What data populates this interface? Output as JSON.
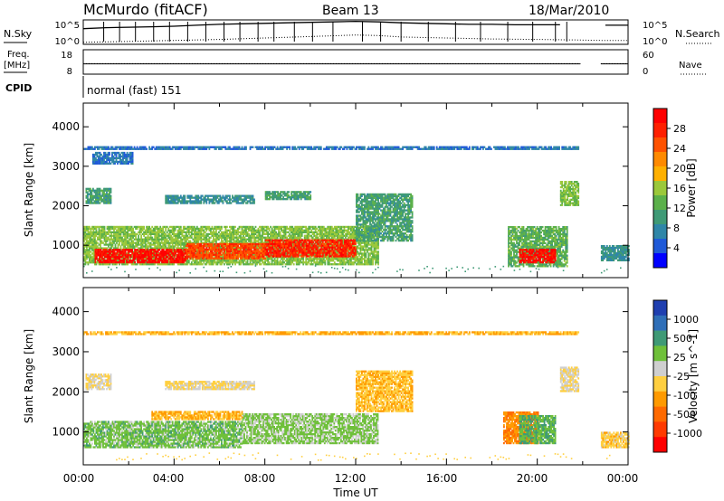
{
  "header": {
    "station": "McMurdo (fitACF)",
    "beam": "Beam 13",
    "date": "18/Mar/2010"
  },
  "noise_panel": {
    "left_label": "N.Sky",
    "left_ticks": [
      "10^5",
      "10^0"
    ],
    "right_ticks": [
      "10^5",
      "10^0"
    ],
    "right_label": "N.Search",
    "series": [
      {
        "style": "solid",
        "points": [
          [
            0,
            3.2
          ],
          [
            1,
            3.4
          ],
          [
            2,
            3.5
          ],
          [
            3,
            3.6
          ],
          [
            4,
            3.7
          ],
          [
            5,
            3.9
          ],
          [
            6,
            4.1
          ],
          [
            7,
            4.2
          ],
          [
            8,
            4.3
          ],
          [
            9,
            4.4
          ],
          [
            10,
            4.5
          ],
          [
            11,
            4.6
          ],
          [
            12,
            4.7
          ],
          [
            13,
            4.6
          ],
          [
            14,
            4.4
          ],
          [
            15,
            4.3
          ],
          [
            16,
            4.2
          ],
          [
            17,
            4.1
          ],
          [
            18,
            4.1
          ],
          [
            19,
            4.0
          ],
          [
            20,
            4.0
          ],
          [
            21,
            4.0
          ],
          [
            22,
            null
          ],
          [
            23,
            3.9
          ],
          [
            24,
            3.9
          ]
        ]
      },
      {
        "style": "dotted",
        "points": [
          [
            0,
            0.4
          ],
          [
            2,
            0.6
          ],
          [
            4,
            0.8
          ],
          [
            6,
            1.0
          ],
          [
            8,
            1.3
          ],
          [
            10,
            1.6
          ],
          [
            12,
            1.9
          ],
          [
            13,
            1.8
          ],
          [
            14,
            1.5
          ],
          [
            16,
            1.3
          ],
          [
            18,
            1.1
          ],
          [
            20,
            1.0
          ],
          [
            21.5,
            0.9
          ],
          [
            22.8,
            0.8
          ],
          [
            24,
            0.8
          ]
        ]
      }
    ],
    "spikes": [
      0.9,
      1.6,
      2.3,
      3.1,
      3.8,
      4.6,
      5.4,
      6.2,
      6.9,
      7.7,
      8.4,
      9.3,
      10.1,
      11.0,
      12.3,
      13.1,
      14.0,
      15.2,
      16.4,
      17.5,
      18.7,
      19.8,
      20.8,
      21.3
    ]
  },
  "freq_panel": {
    "left_label_1": "Freq.",
    "left_label_2": "[MHz]",
    "left_ticks": [
      "18",
      "8"
    ],
    "right_ticks": [
      "60",
      "0"
    ],
    "right_label": "Nave",
    "freq_mhz": 12.2,
    "nave": 8
  },
  "cpid": {
    "label": "CPID",
    "value": "normal (fast) 151"
  },
  "panels": {
    "ylabel": "Slant Range [km]",
    "yticks": [
      "1000",
      "2000",
      "3000",
      "4000"
    ]
  },
  "time_axis": {
    "xlabel": "Time UT",
    "ticks": [
      "00:00",
      "04:00",
      "08:00",
      "12:00",
      "16:00",
      "20:00",
      "00:00"
    ]
  },
  "power_scale": {
    "label": "Power [dB]",
    "ticks": [
      "4",
      "8",
      "12",
      "16",
      "20",
      "24",
      "28"
    ],
    "colors": [
      "#0000ff",
      "#1f5ad8",
      "#2f86a8",
      "#3f9a76",
      "#5bb04a",
      "#9bc83a",
      "#ffb000",
      "#ff8a00",
      "#ff5200",
      "#ff2000",
      "#ff0000"
    ]
  },
  "velocity_scale": {
    "label": "Velocity [m s^-1]",
    "ticks": [
      "1000",
      "500",
      "25",
      "-25",
      "-100",
      "-500",
      "-1000"
    ],
    "colors": [
      "#1f3fb0",
      "#2f6fb8",
      "#3f9a76",
      "#6fc03a",
      "#cfcfcf",
      "#ffcf40",
      "#ff9a00",
      "#ff6a00",
      "#ff3a00",
      "#ff0000"
    ]
  },
  "chart_data": [
    {
      "type": "heatmap",
      "title": "",
      "ylabel": "Slant Range [km]",
      "xlabel": "",
      "x_range_hours": [
        0,
        24
      ],
      "ylim": [
        180,
        4600
      ],
      "value_label": "Power [dB]",
      "value_range": [
        0,
        30
      ],
      "regions": [
        {
          "t": [
            0.1,
            1.2
          ],
          "r": [
            2050,
            2450
          ],
          "v": 10
        },
        {
          "t": [
            0.4,
            2.2
          ],
          "r": [
            3050,
            3350
          ],
          "v": 6
        },
        {
          "t": [
            3.6,
            7.5
          ],
          "r": [
            2050,
            2250
          ],
          "v": 8
        },
        {
          "t": [
            8.0,
            10.0
          ],
          "r": [
            2150,
            2350
          ],
          "v": 10
        },
        {
          "t": [
            0.0,
            13.0
          ],
          "r": [
            500,
            1450
          ],
          "v": 14
        },
        {
          "t": [
            0.5,
            4.5
          ],
          "r": [
            550,
            900
          ],
          "v": 28
        },
        {
          "t": [
            4.5,
            8.0
          ],
          "r": [
            650,
            1050
          ],
          "v": 24
        },
        {
          "t": [
            8.0,
            12.0
          ],
          "r": [
            700,
            1150
          ],
          "v": 26
        },
        {
          "t": [
            12.0,
            14.5
          ],
          "r": [
            1100,
            2300
          ],
          "v": 10
        },
        {
          "t": [
            18.7,
            21.3
          ],
          "r": [
            450,
            1450
          ],
          "v": 12
        },
        {
          "t": [
            19.2,
            20.8
          ],
          "r": [
            550,
            900
          ],
          "v": 28
        },
        {
          "t": [
            21.0,
            21.8
          ],
          "r": [
            2000,
            2600
          ],
          "v": 14
        },
        {
          "t": [
            0.0,
            21.8
          ],
          "r": [
            3420,
            3480
          ],
          "v": 6
        },
        {
          "t": [
            22.8,
            24.0
          ],
          "r": [
            600,
            1000
          ],
          "v": 8
        }
      ]
    },
    {
      "type": "heatmap",
      "title": "",
      "ylabel": "Slant Range [km]",
      "xlabel": "Time UT",
      "x_range_hours": [
        0,
        24
      ],
      "ylim": [
        180,
        4600
      ],
      "value_label": "Velocity [m s^-1]",
      "value_range": [
        -1000,
        1000
      ],
      "regions": [
        {
          "t": [
            0.1,
            1.2
          ],
          "r": [
            2050,
            2450
          ],
          "v": 0
        },
        {
          "t": [
            3.6,
            7.5
          ],
          "r": [
            2050,
            2250
          ],
          "v": 0
        },
        {
          "t": [
            0.0,
            7.0
          ],
          "r": [
            600,
            1250
          ],
          "v": 300
        },
        {
          "t": [
            7.0,
            13.0
          ],
          "r": [
            700,
            1450
          ],
          "v": 250
        },
        {
          "t": [
            3.0,
            7.0
          ],
          "r": [
            1300,
            1500
          ],
          "v": -200
        },
        {
          "t": [
            12.0,
            14.5
          ],
          "r": [
            1500,
            2500
          ],
          "v": -150
        },
        {
          "t": [
            18.5,
            20.0
          ],
          "r": [
            700,
            1500
          ],
          "v": -400
        },
        {
          "t": [
            19.2,
            20.8
          ],
          "r": [
            700,
            1400
          ],
          "v": 400
        },
        {
          "t": [
            21.0,
            21.8
          ],
          "r": [
            2000,
            2600
          ],
          "v": 0
        },
        {
          "t": [
            0.0,
            21.8
          ],
          "r": [
            3420,
            3480
          ],
          "v": -200
        },
        {
          "t": [
            22.8,
            24.0
          ],
          "r": [
            600,
            1000
          ],
          "v": -100
        }
      ]
    }
  ]
}
